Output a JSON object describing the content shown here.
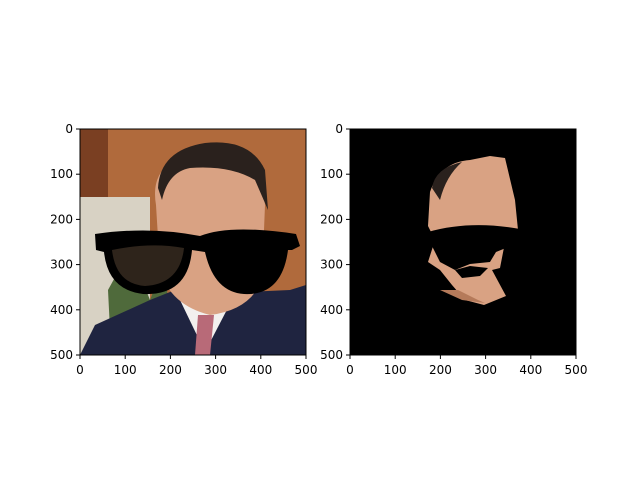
{
  "figure": {
    "background": "#ffffff",
    "axis_color": "#000000"
  },
  "chart_data": [
    {
      "type": "image",
      "name": "left-panel",
      "title": "",
      "xlabel": "",
      "ylabel": "",
      "xlim": [
        0,
        500
      ],
      "ylim": [
        500,
        0
      ],
      "xticks": [
        0,
        100,
        200,
        300,
        400,
        500
      ],
      "yticks": [
        0,
        100,
        200,
        300,
        400,
        500
      ],
      "xtick_labels": [
        "0",
        "100",
        "200",
        "300",
        "400",
        "500"
      ],
      "ytick_labels": [
        "0",
        "100",
        "200",
        "300",
        "400",
        "500"
      ],
      "content": "portrait-with-glasses-overlay",
      "colors": {
        "wall": "#b06a3c",
        "wall_dark": "#7a3f22",
        "window": "#d8d2c4",
        "skin": "#d9a283",
        "hair": "#2a211d",
        "suit": "#1f2440",
        "shirt": "#f2f0ee",
        "tie": "#b86a78",
        "glasses": "#000000",
        "plant": "#4f6a3b"
      }
    },
    {
      "type": "image",
      "name": "right-panel",
      "title": "",
      "xlabel": "",
      "ylabel": "",
      "xlim": [
        0,
        500
      ],
      "ylim": [
        500,
        0
      ],
      "xticks": [
        0,
        100,
        200,
        300,
        400,
        500
      ],
      "yticks": [
        0,
        100,
        200,
        300,
        400,
        500
      ],
      "xtick_labels": [
        "0",
        "100",
        "200",
        "300",
        "400",
        "500"
      ],
      "ytick_labels": [
        "0",
        "100",
        "200",
        "300",
        "400",
        "500"
      ],
      "content": "masked-face-on-black",
      "colors": {
        "background": "#000000",
        "skin": "#d9a283",
        "skin_shadow": "#b57a5a",
        "hair": "#2a211d",
        "mask": "#000000"
      }
    }
  ]
}
